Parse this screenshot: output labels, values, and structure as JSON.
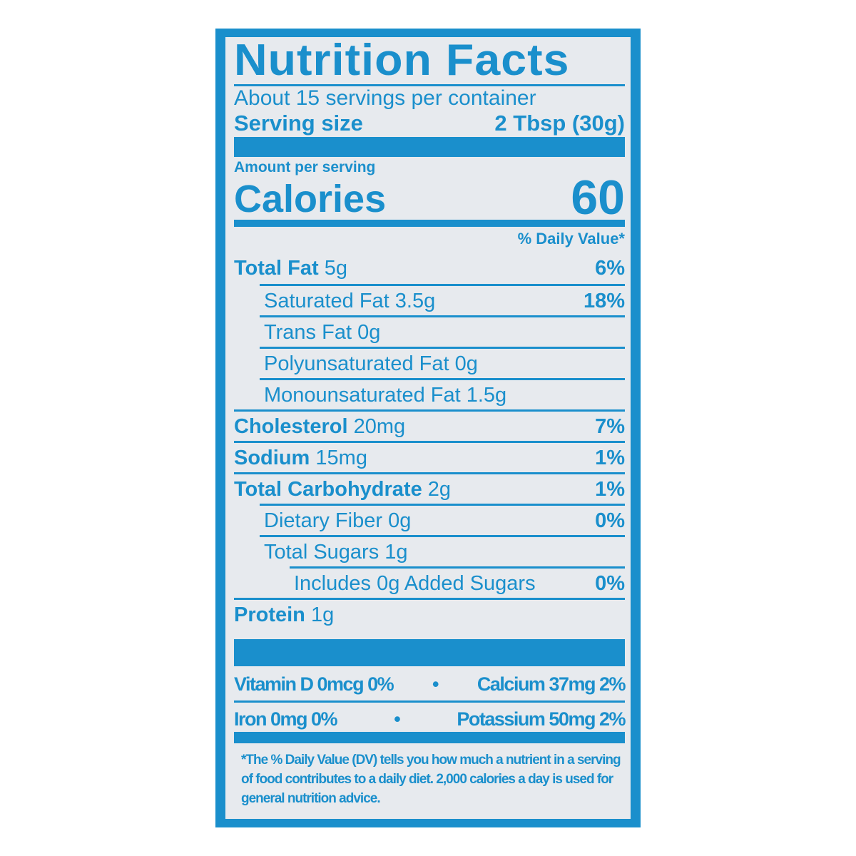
{
  "title": "Nutrition Facts",
  "servings_per_container": "About 15 servings per container",
  "serving_size_label": "Serving size",
  "serving_size_value": "2 Tbsp (30g)",
  "amount_per_serving": "Amount per serving",
  "calories_label": "Calories",
  "calories_value": "60",
  "daily_value_header": "% Daily Value*",
  "nutrients": [
    {
      "name": "Total Fat",
      "amount": "5g",
      "dv": "6%",
      "bold": true,
      "indent": 0
    },
    {
      "name": "Saturated Fat",
      "amount": "3.5g",
      "dv": "18%",
      "bold": false,
      "indent": 1
    },
    {
      "name": "Trans Fat",
      "amount": "0g",
      "dv": "",
      "bold": false,
      "indent": 1
    },
    {
      "name": "Polyunsaturated Fat",
      "amount": "0g",
      "dv": "",
      "bold": false,
      "indent": 1
    },
    {
      "name": "Monounsaturated Fat",
      "amount": "1.5g",
      "dv": "",
      "bold": false,
      "indent": 1
    },
    {
      "name": "Cholesterol",
      "amount": "20mg",
      "dv": "7%",
      "bold": true,
      "indent": 0
    },
    {
      "name": "Sodium",
      "amount": "15mg",
      "dv": "1%",
      "bold": true,
      "indent": 0
    },
    {
      "name": "Total Carbohydrate",
      "amount": "2g",
      "dv": "1%",
      "bold": true,
      "indent": 0
    },
    {
      "name": "Dietary Fiber",
      "amount": "0g",
      "dv": "0%",
      "bold": false,
      "indent": 1
    },
    {
      "name": "Total Sugars",
      "amount": "1g",
      "dv": "",
      "bold": false,
      "indent": 1
    },
    {
      "name": "Includes 0g Added Sugars",
      "amount": "",
      "dv": "0%",
      "bold": false,
      "indent": 2
    },
    {
      "name": "Protein",
      "amount": "1g",
      "dv": "",
      "bold": true,
      "indent": 0
    }
  ],
  "vitamins": [
    {
      "left": "Vitamin D 0mcg 0%",
      "right": "Calcium 37mg 2%"
    },
    {
      "left": "Iron 0mg 0%",
      "right": "Potassium 50mg 2%"
    }
  ],
  "bullet": "•",
  "footnote": "*The % Daily Value (DV) tells you how much a nutrient in a serving of food contributes to a daily diet. 2,000 calories a day is used for general nutrition advice.",
  "colors": {
    "ink": "#1a8fcc",
    "background": "#e7eaee"
  }
}
